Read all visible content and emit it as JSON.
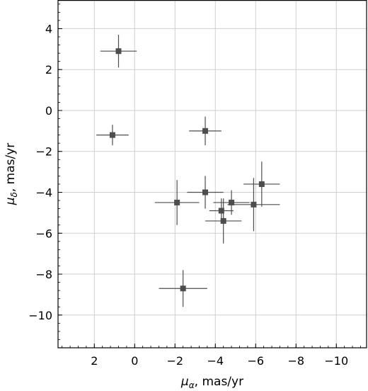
{
  "chart_data": {
    "type": "scatter",
    "xlabel": "μα, mas/yr",
    "ylabel": "μδ, mas/yr",
    "xlim": [
      3.8,
      -11.5
    ],
    "ylim": [
      -11.6,
      5.4
    ],
    "xticks": [
      2,
      0,
      -2,
      -4,
      -6,
      -8,
      -10
    ],
    "yticks": [
      4,
      2,
      0,
      -2,
      -4,
      -6,
      -8,
      -10
    ],
    "xtick_labels": [
      "2",
      "0",
      "−2",
      "−4",
      "−6",
      "−8",
      "−10"
    ],
    "ytick_labels": [
      "4",
      "2",
      "0",
      "−2",
      "−4",
      "−6",
      "−8",
      "−10"
    ],
    "grid": true,
    "marker": "square",
    "color": "#4d4d4d",
    "points": [
      {
        "x": 0.8,
        "y": 2.9,
        "xerr": 0.9,
        "yerr": 0.8
      },
      {
        "x": 1.1,
        "y": -1.2,
        "xerr": 0.8,
        "yerr": 0.5
      },
      {
        "x": -3.5,
        "y": -1.0,
        "xerr": 0.8,
        "yerr": 0.7
      },
      {
        "x": -2.1,
        "y": -4.5,
        "xerr": 1.1,
        "yerr": 1.1
      },
      {
        "x": -3.5,
        "y": -4.0,
        "xerr": 0.9,
        "yerr": 0.8
      },
      {
        "x": -4.3,
        "y": -4.9,
        "xerr": 0.6,
        "yerr": 0.6
      },
      {
        "x": -4.4,
        "y": -5.4,
        "xerr": 0.9,
        "yerr": 1.1
      },
      {
        "x": -4.8,
        "y": -4.5,
        "xerr": 0.9,
        "yerr": 0.6
      },
      {
        "x": -5.9,
        "y": -4.6,
        "xerr": 1.3,
        "yerr": 1.3
      },
      {
        "x": -6.3,
        "y": -3.6,
        "xerr": 0.9,
        "yerr": 1.1
      },
      {
        "x": -2.4,
        "y": -8.7,
        "xerr": 1.2,
        "yerr": 0.9
      }
    ]
  }
}
